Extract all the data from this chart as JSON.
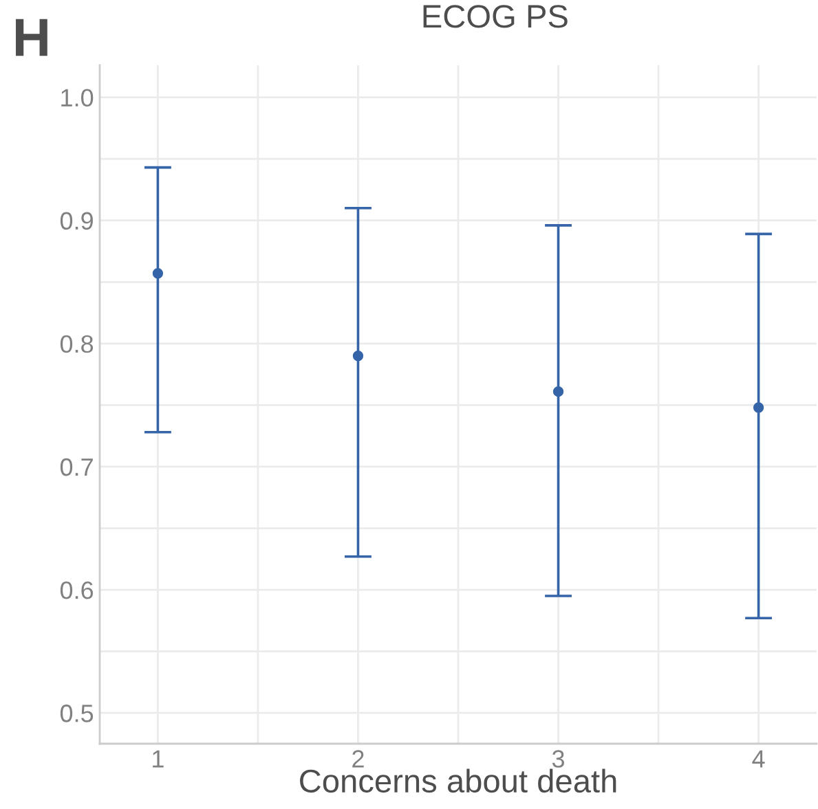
{
  "chart_data": {
    "type": "scatter",
    "title": "ECOG PS",
    "xlabel": "Concerns about death",
    "annotations": [
      "H"
    ],
    "x": [
      1,
      2,
      3,
      4
    ],
    "values": [
      0.857,
      0.79,
      0.761,
      0.748
    ],
    "errors": [
      [
        0.728,
        0.943
      ],
      [
        0.627,
        0.91
      ],
      [
        0.595,
        0.896
      ],
      [
        0.577,
        0.889
      ]
    ],
    "color": "#3565a8",
    "marker": "circle",
    "grid": true,
    "xlim": [
      0.71,
      4.29
    ],
    "xticks": [
      1,
      {
        "value": 1.5,
        "label": null
      },
      2,
      {
        "value": 2.5,
        "label": null
      },
      3,
      {
        "value": 3.5,
        "label": null
      },
      4
    ],
    "ylim": [
      0.475,
      1.026
    ],
    "yticks": [
      0.5,
      {
        "value": 0.55,
        "label": null
      },
      0.6,
      {
        "value": 0.65,
        "label": null
      },
      0.7,
      {
        "value": 0.75,
        "label": null
      },
      0.8,
      {
        "value": 0.85,
        "label": null
      },
      0.9,
      {
        "value": 0.95,
        "label": null
      },
      {
        "value": 1,
        "label": "1.0"
      }
    ]
  }
}
